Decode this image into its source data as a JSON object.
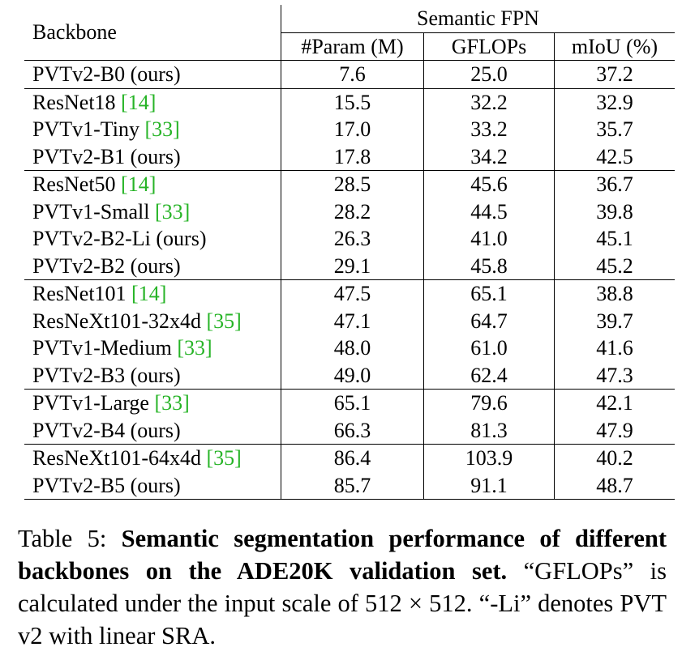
{
  "table": {
    "header": {
      "backbone": "Backbone",
      "group": "Semantic FPN",
      "columns": [
        "#Param (M)",
        "GFLOPs",
        "mIoU (%)"
      ]
    },
    "rows": [
      {
        "name": "PVTv2-B0 (ours)",
        "ref": "",
        "values": [
          "7.6",
          "25.0",
          "37.2"
        ],
        "bold": [
          true,
          true,
          true
        ]
      },
      {
        "name": "ResNet18 ",
        "ref": "[14]",
        "values": [
          "15.5",
          "32.2",
          "32.9"
        ],
        "bold": [
          true,
          true,
          false
        ]
      },
      {
        "name": "PVTv1-Tiny ",
        "ref": "[33]",
        "values": [
          "17.0",
          "33.2",
          "35.7"
        ],
        "bold": [
          false,
          false,
          false
        ]
      },
      {
        "name": "PVTv2-B1 (ours)",
        "ref": "",
        "values": [
          "17.8",
          "34.2",
          "42.5"
        ],
        "bold": [
          false,
          false,
          true
        ]
      },
      {
        "name": "ResNet50 ",
        "ref": "[14]",
        "values": [
          "28.5",
          "45.6",
          "36.7"
        ],
        "bold": [
          false,
          false,
          false
        ]
      },
      {
        "name": "PVTv1-Small ",
        "ref": "[33]",
        "values": [
          "28.2",
          "44.5",
          "39.8"
        ],
        "bold": [
          false,
          false,
          false
        ]
      },
      {
        "name": "PVTv2-B2-Li (ours)",
        "ref": "",
        "values": [
          "26.3",
          "41.0",
          "45.1"
        ],
        "bold": [
          true,
          true,
          false
        ]
      },
      {
        "name": "PVTv2-B2 (ours)",
        "ref": "",
        "values": [
          "29.1",
          "45.8",
          "45.2"
        ],
        "bold": [
          false,
          false,
          true
        ]
      },
      {
        "name": "ResNet101 ",
        "ref": "[14]",
        "values": [
          "47.5",
          "65.1",
          "38.8"
        ],
        "bold": [
          false,
          false,
          false
        ]
      },
      {
        "name": "ResNeXt101-32x4d ",
        "ref": "[35]",
        "values": [
          "47.1",
          "64.7",
          "39.7"
        ],
        "bold": [
          true,
          false,
          false
        ]
      },
      {
        "name": "PVTv1-Medium ",
        "ref": "[33]",
        "values": [
          "48.0",
          "61.0",
          "41.6"
        ],
        "bold": [
          false,
          true,
          false
        ]
      },
      {
        "name": "PVTv2-B3 (ours)",
        "ref": "",
        "values": [
          "49.0",
          "62.4",
          "47.3"
        ],
        "bold": [
          false,
          false,
          true
        ]
      },
      {
        "name": "PVTv1-Large ",
        "ref": "[33]",
        "values": [
          "65.1",
          "79.6",
          "42.1"
        ],
        "bold": [
          true,
          true,
          false
        ]
      },
      {
        "name": "PVTv2-B4 (ours)",
        "ref": "",
        "values": [
          "66.3",
          "81.3",
          "47.9"
        ],
        "bold": [
          false,
          false,
          true
        ]
      },
      {
        "name": "ResNeXt101-64x4d ",
        "ref": "[35]",
        "values": [
          "86.4",
          "103.9",
          "40.2"
        ],
        "bold": [
          false,
          false,
          false
        ]
      },
      {
        "name": "PVTv2-B5 (ours)",
        "ref": "",
        "values": [
          "85.7",
          "91.1",
          "48.7"
        ],
        "bold": [
          true,
          true,
          true
        ]
      }
    ]
  },
  "caption": {
    "label": "Table 5: ",
    "bold": "Semantic segmentation performance of different backbones on the ADE20K validation set.",
    "rest": " “GFLOPs” is calculated under the input scale of 512 × 512. “-Li” denotes PVT v2 with linear SRA."
  },
  "colors": {
    "ref_link": "#27b427"
  }
}
